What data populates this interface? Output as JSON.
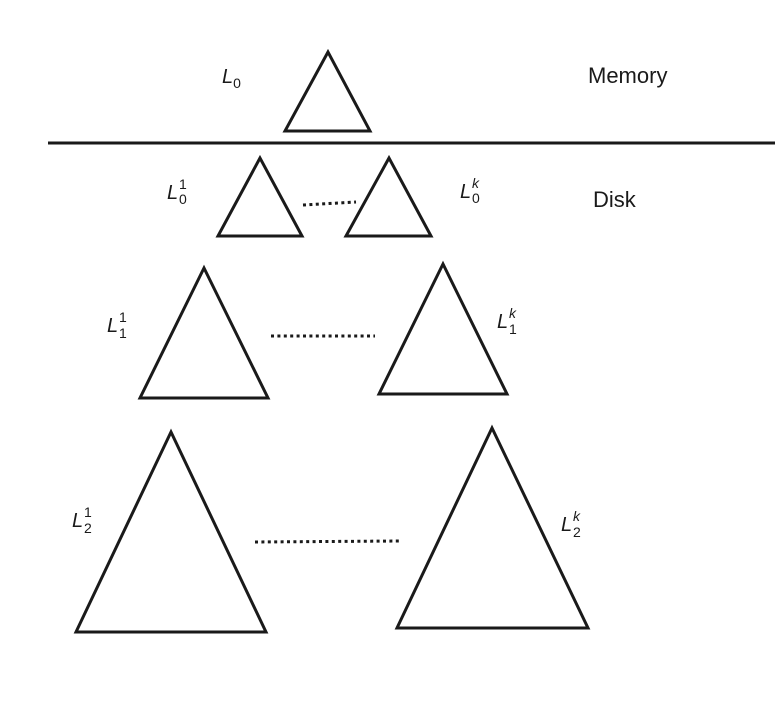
{
  "regions": {
    "memory": "Memory",
    "disk": "Disk"
  },
  "labels": {
    "l0": {
      "base": "L",
      "sub": "0",
      "sup": ""
    },
    "l0_1": {
      "base": "L",
      "sub": "0",
      "sup": "1"
    },
    "l0_k": {
      "base": "L",
      "sub": "0",
      "sup": "k"
    },
    "l1_1": {
      "base": "L",
      "sub": "1",
      "sup": "1"
    },
    "l1_k": {
      "base": "L",
      "sub": "1",
      "sup": "k"
    },
    "l2_1": {
      "base": "L",
      "sub": "2",
      "sup": "1"
    },
    "l2_k": {
      "base": "L",
      "sub": "2",
      "sup": "k"
    }
  }
}
